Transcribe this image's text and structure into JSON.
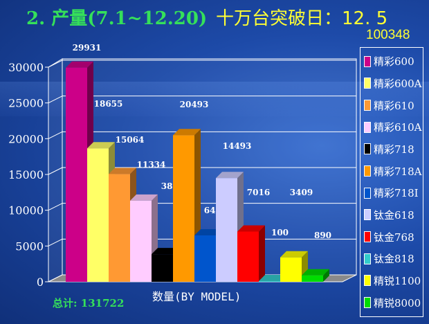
{
  "header": {
    "title": "2. 产量(7.1~12.20)",
    "highlight": "十万台突破日：12. 5",
    "subtitle": "100348"
  },
  "footer": {
    "total": "总计: 131722"
  },
  "chart_data": {
    "type": "bar",
    "xlabel": "数量(BY MODEL)",
    "ylabel": "",
    "ylim": [
      0,
      30000
    ],
    "yticks": [
      0,
      5000,
      10000,
      15000,
      20000,
      25000,
      30000
    ],
    "grid": true,
    "legend_position": "right",
    "categories": [
      "精彩600",
      "精彩600A",
      "精彩610",
      "精彩610A",
      "精彩718",
      "精彩718A",
      "精彩718I",
      "钛金618",
      "钛金768",
      "钛金818",
      "精锐1100",
      "精锐8000"
    ],
    "values": [
      29931,
      18655,
      15064,
      11334,
      3856,
      20493,
      6481,
      14493,
      7016,
      100,
      3409,
      890
    ],
    "colors": [
      "#cc0088",
      "#ffff66",
      "#ff9933",
      "#ffccff",
      "#000000",
      "#ff9900",
      "#0055cc",
      "#ccccff",
      "#ff0000",
      "#33cccc",
      "#ffff00",
      "#00dd00"
    ]
  }
}
